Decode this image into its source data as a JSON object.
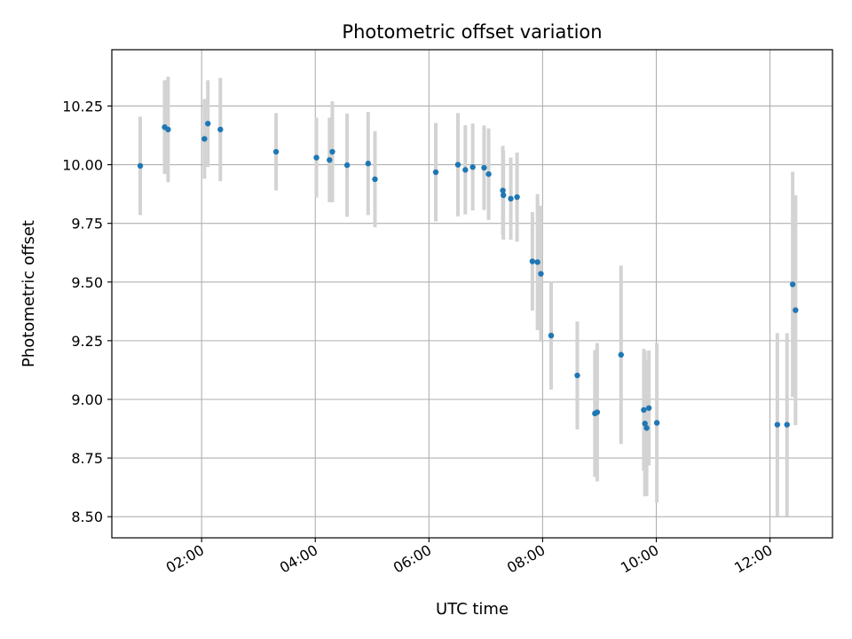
{
  "chart_data": {
    "type": "scatter",
    "title": "Photometric offset variation",
    "xlabel": "UTC time",
    "ylabel": "Photometric offset",
    "xlim": [
      0.42,
      13.1
    ],
    "ylim": [
      8.41,
      10.49
    ],
    "grid": true,
    "x_ticks": [
      {
        "value": 2,
        "label": "02:00"
      },
      {
        "value": 4,
        "label": "04:00"
      },
      {
        "value": 6,
        "label": "06:00"
      },
      {
        "value": 8,
        "label": "08:00"
      },
      {
        "value": 10,
        "label": "10:00"
      },
      {
        "value": 12,
        "label": "12:00"
      }
    ],
    "y_ticks": [
      {
        "value": 8.5,
        "label": "8.50"
      },
      {
        "value": 8.75,
        "label": "8.75"
      },
      {
        "value": 9.0,
        "label": "9.00"
      },
      {
        "value": 9.25,
        "label": "9.25"
      },
      {
        "value": 9.5,
        "label": "9.50"
      },
      {
        "value": 9.75,
        "label": "9.75"
      },
      {
        "value": 10.0,
        "label": "10.00"
      },
      {
        "value": 10.25,
        "label": "10.25"
      }
    ],
    "point_color": "#1f77b4",
    "errorbar_color": "#d3d3d3",
    "points": [
      {
        "x": 0.92,
        "y": 9.995,
        "err": 0.21
      },
      {
        "x": 1.35,
        "y": 10.16,
        "err": 0.2
      },
      {
        "x": 1.41,
        "y": 10.15,
        "err": 0.225
      },
      {
        "x": 2.05,
        "y": 10.11,
        "err": 0.17
      },
      {
        "x": 2.11,
        "y": 10.175,
        "err": 0.185
      },
      {
        "x": 2.33,
        "y": 10.15,
        "err": 0.22
      },
      {
        "x": 3.31,
        "y": 10.055,
        "err": 0.165
      },
      {
        "x": 4.02,
        "y": 10.03,
        "err": 0.17
      },
      {
        "x": 4.25,
        "y": 10.02,
        "err": 0.18
      },
      {
        "x": 4.3,
        "y": 10.055,
        "err": 0.215
      },
      {
        "x": 4.56,
        "y": 9.998,
        "err": 0.22
      },
      {
        "x": 4.93,
        "y": 10.005,
        "err": 0.22
      },
      {
        "x": 5.05,
        "y": 9.938,
        "err": 0.205
      },
      {
        "x": 6.12,
        "y": 9.968,
        "err": 0.21
      },
      {
        "x": 6.51,
        "y": 10.0,
        "err": 0.22
      },
      {
        "x": 6.64,
        "y": 9.978,
        "err": 0.19
      },
      {
        "x": 6.77,
        "y": 9.99,
        "err": 0.185
      },
      {
        "x": 6.97,
        "y": 9.987,
        "err": 0.18
      },
      {
        "x": 7.05,
        "y": 9.96,
        "err": 0.195
      },
      {
        "x": 7.3,
        "y": 9.89,
        "err": 0.19
      },
      {
        "x": 7.31,
        "y": 9.87,
        "err": 0.19
      },
      {
        "x": 7.44,
        "y": 9.855,
        "err": 0.175
      },
      {
        "x": 7.55,
        "y": 9.862,
        "err": 0.19
      },
      {
        "x": 7.82,
        "y": 9.588,
        "err": 0.21
      },
      {
        "x": 7.91,
        "y": 9.585,
        "err": 0.29
      },
      {
        "x": 7.97,
        "y": 9.535,
        "err": 0.29
      },
      {
        "x": 8.15,
        "y": 9.272,
        "err": 0.23
      },
      {
        "x": 8.61,
        "y": 9.102,
        "err": 0.23
      },
      {
        "x": 8.92,
        "y": 8.94,
        "err": 0.27
      },
      {
        "x": 8.96,
        "y": 8.945,
        "err": 0.295
      },
      {
        "x": 9.38,
        "y": 9.19,
        "err": 0.38
      },
      {
        "x": 9.78,
        "y": 8.955,
        "err": 0.26
      },
      {
        "x": 9.8,
        "y": 8.897,
        "err": 0.31
      },
      {
        "x": 9.83,
        "y": 8.878,
        "err": 0.29
      },
      {
        "x": 9.87,
        "y": 8.963,
        "err": 0.245
      },
      {
        "x": 10.01,
        "y": 8.9,
        "err": 0.34
      },
      {
        "x": 12.13,
        "y": 8.892,
        "err": 0.39
      },
      {
        "x": 12.3,
        "y": 8.892,
        "err": 0.39
      },
      {
        "x": 12.4,
        "y": 9.49,
        "err": 0.48
      },
      {
        "x": 12.45,
        "y": 9.38,
        "err": 0.49
      }
    ]
  }
}
